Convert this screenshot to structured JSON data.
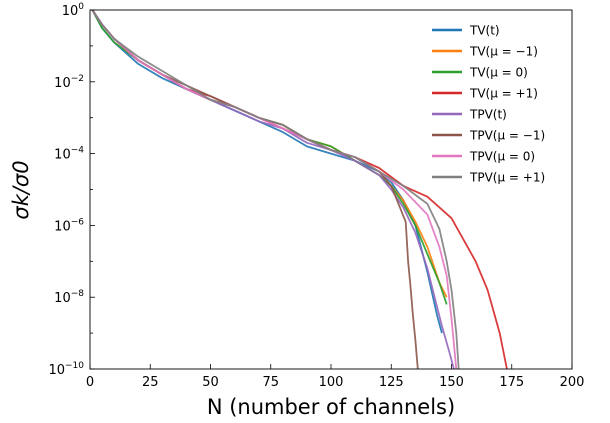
{
  "chart_data": {
    "type": "line",
    "xlabel": "N (number of channels)",
    "ylabel": "σk/σ0",
    "xlim": [
      0,
      200
    ],
    "ylim_log10": [
      -10,
      0
    ],
    "y_scale": "log",
    "grid": false,
    "legend_position": "top-right",
    "x_ticks": [
      "0",
      "25",
      "50",
      "75",
      "100",
      "125",
      "150",
      "175",
      "200"
    ],
    "y_ticks": [
      {
        "base": "10",
        "exp": "0"
      },
      {
        "base": "10",
        "exp": "−2"
      },
      {
        "base": "10",
        "exp": "−4"
      },
      {
        "base": "10",
        "exp": "−6"
      },
      {
        "base": "10",
        "exp": "−8"
      },
      {
        "base": "10",
        "exp": "−10"
      }
    ],
    "series": [
      {
        "name": "TV(t)",
        "color": "#1f77b4",
        "x": [
          1,
          5,
          10,
          20,
          30,
          40,
          50,
          60,
          70,
          80,
          90,
          100,
          110,
          120,
          125,
          130,
          135,
          140,
          144,
          146
        ],
        "log10_y": [
          0,
          -0.5,
          -0.9,
          -1.5,
          -1.9,
          -2.2,
          -2.5,
          -2.8,
          -3.1,
          -3.4,
          -3.8,
          -4.0,
          -4.2,
          -4.5,
          -4.8,
          -5.3,
          -6.0,
          -7.3,
          -8.5,
          -9.0
        ]
      },
      {
        "name": "TV(μ = −1)",
        "color": "#ff7f0e",
        "x": [
          1,
          5,
          10,
          20,
          30,
          40,
          50,
          60,
          70,
          80,
          90,
          100,
          110,
          120,
          125,
          130,
          135,
          140,
          145,
          148
        ],
        "log10_y": [
          0,
          -0.4,
          -0.8,
          -1.4,
          -1.8,
          -2.2,
          -2.5,
          -2.7,
          -3.0,
          -3.2,
          -3.6,
          -3.8,
          -4.2,
          -4.6,
          -4.9,
          -5.3,
          -5.9,
          -6.6,
          -7.6,
          -8.0
        ]
      },
      {
        "name": "TV(μ = 0)",
        "color": "#2ca02c",
        "x": [
          1,
          5,
          10,
          20,
          30,
          40,
          50,
          60,
          70,
          80,
          90,
          100,
          110,
          120,
          125,
          130,
          135,
          140,
          145,
          148
        ],
        "log10_y": [
          0,
          -0.5,
          -0.9,
          -1.4,
          -1.8,
          -2.2,
          -2.5,
          -2.7,
          -3.0,
          -3.2,
          -3.6,
          -3.8,
          -4.2,
          -4.6,
          -4.9,
          -5.4,
          -6.0,
          -6.8,
          -7.6,
          -8.2
        ]
      },
      {
        "name": "TV(μ = +1)",
        "color": "#d62728",
        "x": [
          1,
          5,
          10,
          20,
          30,
          40,
          50,
          60,
          70,
          80,
          90,
          100,
          110,
          120,
          130,
          140,
          150,
          155,
          160,
          165,
          170,
          173
        ],
        "log10_y": [
          0,
          -0.4,
          -0.8,
          -1.4,
          -1.8,
          -2.2,
          -2.4,
          -2.7,
          -3.0,
          -3.3,
          -3.6,
          -3.9,
          -4.1,
          -4.4,
          -4.9,
          -5.2,
          -5.8,
          -6.4,
          -7.0,
          -7.8,
          -9.0,
          -10.0
        ]
      },
      {
        "name": "TPV(t)",
        "color": "#9467bd",
        "x": [
          1,
          5,
          10,
          20,
          30,
          40,
          50,
          60,
          70,
          80,
          90,
          100,
          110,
          120,
          125,
          130,
          135,
          140,
          143,
          146,
          149,
          151
        ],
        "log10_y": [
          0,
          -0.4,
          -0.8,
          -1.4,
          -1.8,
          -2.2,
          -2.5,
          -2.8,
          -3.1,
          -3.3,
          -3.7,
          -3.9,
          -4.2,
          -4.6,
          -5.0,
          -5.5,
          -6.2,
          -7.2,
          -8.0,
          -8.8,
          -9.5,
          -10.0
        ]
      },
      {
        "name": "TPV(μ = −1)",
        "color": "#8c564b",
        "x": [
          1,
          5,
          10,
          20,
          30,
          40,
          50,
          60,
          70,
          80,
          90,
          100,
          110,
          120,
          125,
          128,
          131,
          132,
          133,
          134,
          135,
          136
        ],
        "log10_y": [
          0,
          -0.4,
          -0.8,
          -1.4,
          -1.8,
          -2.1,
          -2.4,
          -2.7,
          -3.0,
          -3.2,
          -3.6,
          -3.9,
          -4.1,
          -4.5,
          -4.9,
          -5.4,
          -5.9,
          -7.0,
          -7.7,
          -8.5,
          -9.2,
          -10.0
        ]
      },
      {
        "name": "TPV(μ = 0)",
        "color": "#e377c2",
        "x": [
          1,
          5,
          10,
          20,
          30,
          40,
          50,
          60,
          70,
          80,
          90,
          100,
          110,
          120,
          130,
          140,
          145,
          148,
          150,
          152
        ],
        "log10_y": [
          0,
          -0.4,
          -0.8,
          -1.4,
          -1.8,
          -2.2,
          -2.5,
          -2.7,
          -3.0,
          -3.3,
          -3.6,
          -3.9,
          -4.1,
          -4.5,
          -5.0,
          -5.7,
          -6.6,
          -7.4,
          -8.6,
          -10.0
        ]
      },
      {
        "name": "TPV(μ = +1)",
        "color": "#7f7f7f",
        "x": [
          1,
          5,
          10,
          20,
          30,
          40,
          50,
          60,
          70,
          80,
          90,
          100,
          110,
          120,
          130,
          140,
          145,
          148,
          150,
          152,
          153
        ],
        "log10_y": [
          0,
          -0.4,
          -0.8,
          -1.3,
          -1.7,
          -2.1,
          -2.5,
          -2.7,
          -3.0,
          -3.2,
          -3.6,
          -3.9,
          -4.1,
          -4.5,
          -4.9,
          -5.4,
          -6.1,
          -7.0,
          -7.8,
          -9.0,
          -10.0
        ]
      }
    ]
  }
}
